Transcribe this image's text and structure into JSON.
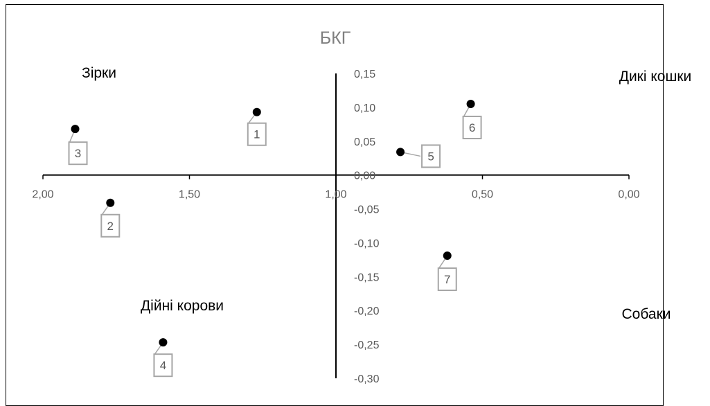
{
  "chart_data": {
    "type": "scatter",
    "title": "БКГ",
    "xlabel": "",
    "ylabel": "",
    "x_reversed": true,
    "xlim": [
      0.0,
      2.0
    ],
    "ylim": [
      -0.3,
      0.15
    ],
    "x_ticks": [
      "2,00",
      "1,50",
      "1,00",
      "0,50",
      "0,00"
    ],
    "x_tick_values": [
      2.0,
      1.5,
      1.0,
      0.5,
      0.0
    ],
    "y_ticks": [
      "0,15",
      "0,10",
      "0,05",
      "0,00",
      "-0,05",
      "-0,10",
      "-0,15",
      "-0,20",
      "-0,25",
      "-0,30"
    ],
    "y_tick_values": [
      0.15,
      0.1,
      0.05,
      0.0,
      -0.05,
      -0.1,
      -0.15,
      -0.2,
      -0.25,
      -0.3
    ],
    "grid": false,
    "points": [
      {
        "label": "1",
        "x": 1.27,
        "y": 0.093
      },
      {
        "label": "2",
        "x": 1.77,
        "y": -0.041
      },
      {
        "label": "3",
        "x": 1.89,
        "y": 0.068
      },
      {
        "label": "4",
        "x": 1.59,
        "y": -0.247
      },
      {
        "label": "5",
        "x": 0.78,
        "y": 0.034
      },
      {
        "label": "6",
        "x": 0.54,
        "y": 0.105
      },
      {
        "label": "7",
        "x": 0.62,
        "y": -0.119
      }
    ],
    "quadrant_labels": [
      "Зірки",
      "Дикі кошки",
      "Дійні корови",
      "Собаки"
    ],
    "marker_color": "#000000",
    "axis_color": "#000000",
    "label_box_color": "#a6a6a6"
  }
}
